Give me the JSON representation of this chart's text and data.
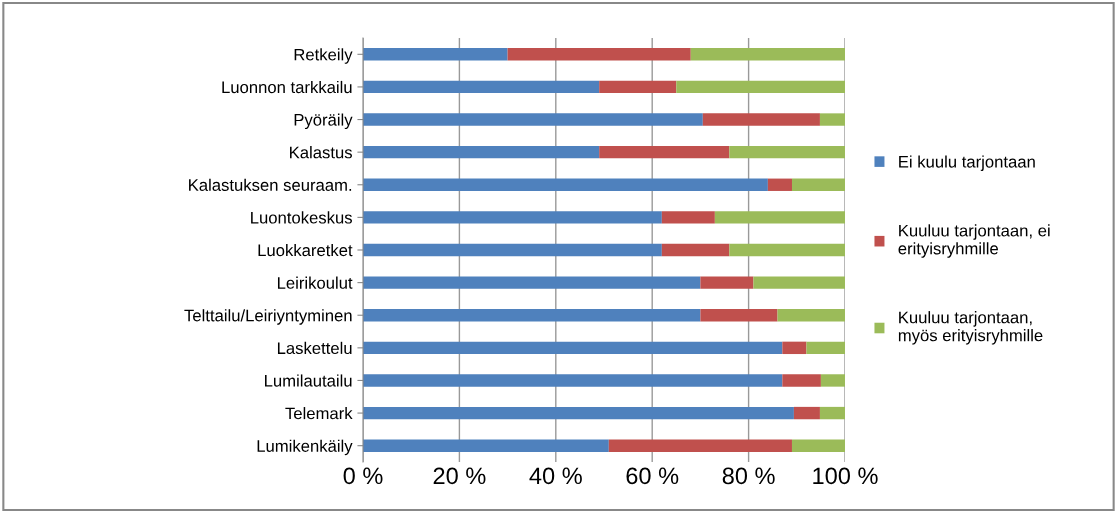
{
  "chart_data": {
    "type": "bar",
    "orientation": "horizontal",
    "stacked": true,
    "categories": [
      "Retkeily",
      "Luonnon tarkkailu",
      "Pyöräily",
      "Kalastus",
      "Kalastuksen seuraam.",
      "Luontokeskus",
      "Luokkaretket",
      "Leirikoulut",
      "Telttailu/Leiriyntyminen",
      "Laskettelu",
      "Lumilautailu",
      "Telemark",
      "Lumikenkäily"
    ],
    "series": [
      {
        "name": "Ei kuulu tarjontaan",
        "color": "#4f81bd",
        "values": [
          30,
          49,
          70.5,
          49,
          84,
          62,
          62,
          70,
          70,
          87,
          87,
          89.4,
          51
        ]
      },
      {
        "name": "Kuuluu tarjontaan, ei\nerityisryhmille",
        "color": "#c0504d",
        "values": [
          38,
          16,
          24.3,
          27,
          5,
          11,
          14,
          11,
          16,
          5,
          8,
          5.4,
          38
        ]
      },
      {
        "name": "Kuuluu tarjontaan,\nmyös erityisryhmille",
        "color": "#9bbb59",
        "values": [
          32,
          35,
          5.2,
          24,
          11,
          27,
          24,
          19,
          14,
          8,
          5,
          5.2,
          11
        ]
      }
    ],
    "xlim": [
      0,
      100
    ],
    "xticks": [
      {
        "value": 0,
        "label": "0 %"
      },
      {
        "value": 20,
        "label": "20 %"
      },
      {
        "value": 40,
        "label": "40 %"
      },
      {
        "value": 60,
        "label": "60 %"
      },
      {
        "value": 80,
        "label": "80 %"
      },
      {
        "value": 100,
        "label": "100 %"
      }
    ],
    "grid": "x",
    "legend": "right"
  }
}
